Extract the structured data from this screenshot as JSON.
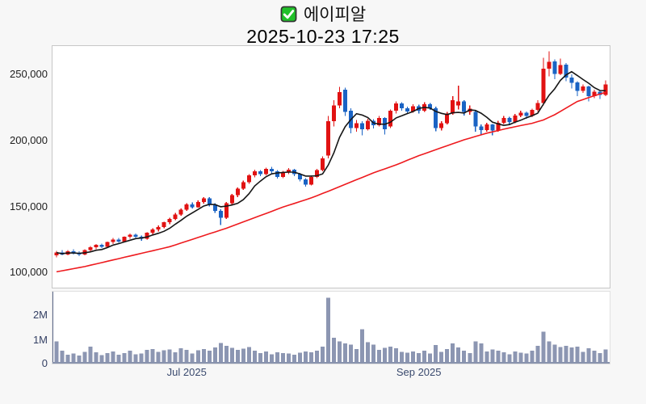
{
  "header": {
    "checkbox_icon": "green-checkbox",
    "checkbox_color": "#21c12a",
    "checkbox_border": "#333333"
  },
  "chart_data": {
    "type": "candlestick",
    "title": "에이피알",
    "timestamp": "2025-10-23 17:25",
    "legend_position": "none",
    "grid": false,
    "colors": {
      "up": "#e11212",
      "down": "#1a63c4",
      "ma_fast": "#161616",
      "ma_slow": "#ee1a1e",
      "volume_bar": "#8c96b2",
      "axis_line": "#5f6b8c",
      "baseline": "#8893ad",
      "plot_border": "#c7c7c7"
    },
    "price_axis": {
      "range": [
        88000,
        271000
      ],
      "ticks": [
        {
          "value": 250000,
          "label": "250,000"
        },
        {
          "value": 200000,
          "label": "200,000"
        },
        {
          "value": 150000,
          "label": "150,000"
        },
        {
          "value": 100000,
          "label": "100,000"
        }
      ]
    },
    "volume_axis": {
      "max": 3050000,
      "ticks": [
        {
          "value": 2000000,
          "label": "2M"
        },
        {
          "value": 1000000,
          "label": "1M"
        },
        {
          "value": 0,
          "label": "0"
        }
      ]
    },
    "x_axis": {
      "ticks": [
        {
          "index": 23,
          "label": "Jul 2025"
        },
        {
          "index": 64,
          "label": "Sep 2025"
        }
      ]
    },
    "ma_fast_period": 6,
    "ma_slow_points": [
      [
        0,
        100000
      ],
      [
        5,
        104000
      ],
      [
        10,
        109000
      ],
      [
        15,
        114000
      ],
      [
        20,
        119000
      ],
      [
        25,
        126000
      ],
      [
        30,
        133000
      ],
      [
        35,
        141000
      ],
      [
        40,
        149000
      ],
      [
        45,
        156000
      ],
      [
        48,
        161000
      ],
      [
        52,
        168000
      ],
      [
        56,
        175000
      ],
      [
        60,
        181000
      ],
      [
        64,
        188000
      ],
      [
        68,
        194000
      ],
      [
        72,
        200000
      ],
      [
        76,
        205000
      ],
      [
        80,
        209000
      ],
      [
        84,
        212500
      ],
      [
        86,
        215000
      ],
      [
        88,
        219000
      ],
      [
        90,
        224000
      ],
      [
        92,
        229000
      ],
      [
        94,
        232000
      ],
      [
        97,
        236000
      ]
    ],
    "ohlcv": [
      [
        112500,
        116000,
        111000,
        114500,
        950000
      ],
      [
        114500,
        116500,
        112500,
        113000,
        550000
      ],
      [
        113000,
        116500,
        112500,
        115500,
        380000
      ],
      [
        115500,
        117000,
        113000,
        114000,
        420000
      ],
      [
        114000,
        115500,
        112000,
        113000,
        350000
      ],
      [
        113000,
        117000,
        112500,
        116500,
        500000
      ],
      [
        116500,
        119500,
        115500,
        118500,
        720000
      ],
      [
        118500,
        121000,
        117000,
        120500,
        480000
      ],
      [
        120500,
        121500,
        118000,
        119000,
        360000
      ],
      [
        119000,
        123000,
        118500,
        122500,
        450000
      ],
      [
        122500,
        125500,
        121000,
        124500,
        520000
      ],
      [
        124500,
        125500,
        122000,
        123000,
        380000
      ],
      [
        123000,
        127000,
        122500,
        126500,
        440000
      ],
      [
        126500,
        129000,
        125000,
        128000,
        550000
      ],
      [
        128000,
        129000,
        125500,
        126500,
        400000
      ],
      [
        126500,
        127500,
        123500,
        125000,
        420000
      ],
      [
        125000,
        130000,
        124500,
        129500,
        580000
      ],
      [
        129500,
        133000,
        128500,
        132000,
        620000
      ],
      [
        132000,
        135000,
        130500,
        134000,
        500000
      ],
      [
        134000,
        138000,
        133000,
        137500,
        560000
      ],
      [
        137500,
        141000,
        136000,
        140000,
        600000
      ],
      [
        140000,
        144500,
        139000,
        143500,
        480000
      ],
      [
        143500,
        148000,
        142500,
        147000,
        650000
      ],
      [
        147000,
        152000,
        146000,
        151000,
        580000
      ],
      [
        151000,
        152500,
        148000,
        149000,
        420000
      ],
      [
        149000,
        154000,
        148500,
        153000,
        560000
      ],
      [
        153000,
        156500,
        151500,
        155500,
        620000
      ],
      [
        155500,
        156500,
        149500,
        151000,
        550000
      ],
      [
        151000,
        152000,
        144500,
        146000,
        680000
      ],
      [
        146000,
        147500,
        135500,
        141000,
        880000
      ],
      [
        141000,
        153000,
        140000,
        152000,
        750000
      ],
      [
        152000,
        159000,
        151000,
        158000,
        660000
      ],
      [
        158000,
        164000,
        156500,
        163000,
        580000
      ],
      [
        163000,
        169000,
        162000,
        168000,
        630000
      ],
      [
        168000,
        174000,
        166500,
        173000,
        700000
      ],
      [
        173000,
        177500,
        171500,
        176000,
        550000
      ],
      [
        176000,
        177000,
        172500,
        174000,
        440000
      ],
      [
        174000,
        179000,
        173000,
        178000,
        520000
      ],
      [
        178000,
        179500,
        174500,
        176000,
        400000
      ],
      [
        176000,
        177000,
        170500,
        172000,
        480000
      ],
      [
        172000,
        176500,
        171000,
        175500,
        450000
      ],
      [
        175500,
        178500,
        174000,
        177500,
        420000
      ],
      [
        177500,
        178000,
        172500,
        174000,
        380000
      ],
      [
        174000,
        175000,
        168500,
        170000,
        460000
      ],
      [
        170000,
        171000,
        164500,
        166000,
        520000
      ],
      [
        166000,
        173000,
        165500,
        172000,
        480000
      ],
      [
        172000,
        178000,
        171000,
        177000,
        550000
      ],
      [
        177000,
        187500,
        176000,
        186000,
        720000
      ],
      [
        188000,
        218000,
        186000,
        214000,
        2800000
      ],
      [
        214000,
        230000,
        210000,
        226000,
        1100000
      ],
      [
        226000,
        240000,
        224000,
        236000,
        950000
      ],
      [
        238000,
        239500,
        218000,
        221000,
        850000
      ],
      [
        222000,
        224000,
        205000,
        209000,
        800000
      ],
      [
        209000,
        215000,
        206000,
        212500,
        620000
      ],
      [
        212500,
        214000,
        203500,
        208000,
        1450000
      ],
      [
        208000,
        216000,
        207000,
        214500,
        900000
      ],
      [
        214500,
        215500,
        208500,
        211000,
        800000
      ],
      [
        211000,
        218000,
        210000,
        216500,
        580000
      ],
      [
        216500,
        217000,
        204000,
        208000,
        660000
      ],
      [
        210000,
        223000,
        209000,
        222000,
        720000
      ],
      [
        222000,
        229000,
        220000,
        227500,
        650000
      ],
      [
        227500,
        228500,
        222000,
        224000,
        500000
      ],
      [
        224000,
        225000,
        219500,
        221500,
        460000
      ],
      [
        221500,
        227000,
        220500,
        225500,
        520000
      ],
      [
        225500,
        226500,
        220000,
        222000,
        440000
      ],
      [
        222000,
        228500,
        221000,
        227000,
        550000
      ],
      [
        227000,
        228000,
        222500,
        224000,
        420000
      ],
      [
        224000,
        225000,
        206500,
        209000,
        780000
      ],
      [
        209000,
        214000,
        207000,
        212500,
        500000
      ],
      [
        212500,
        221000,
        211500,
        220000,
        620000
      ],
      [
        220000,
        233000,
        219000,
        230000,
        850000
      ],
      [
        226000,
        241000,
        223000,
        229000,
        680000
      ],
      [
        229000,
        230000,
        218500,
        221000,
        550000
      ],
      [
        221000,
        226000,
        219000,
        223500,
        450000
      ],
      [
        221000,
        222000,
        206000,
        210000,
        950000
      ],
      [
        210000,
        211500,
        204000,
        207500,
        850000
      ],
      [
        207500,
        213000,
        206000,
        211500,
        520000
      ],
      [
        211500,
        212000,
        203500,
        207000,
        600000
      ],
      [
        207000,
        214500,
        206000,
        213000,
        550000
      ],
      [
        213000,
        218000,
        212000,
        216500,
        480000
      ],
      [
        216500,
        217500,
        211500,
        213500,
        400000
      ],
      [
        213500,
        219500,
        212500,
        218500,
        520000
      ],
      [
        218500,
        222000,
        217000,
        220500,
        460000
      ],
      [
        220500,
        221500,
        216000,
        218000,
        420000
      ],
      [
        218000,
        223500,
        217000,
        222500,
        550000
      ],
      [
        222500,
        230000,
        221500,
        228000,
        750000
      ],
      [
        228000,
        262000,
        226000,
        254000,
        1350000
      ],
      [
        254000,
        267000,
        248000,
        259000,
        950000
      ],
      [
        259500,
        261000,
        246000,
        250000,
        800000
      ],
      [
        250000,
        261500,
        249000,
        256500,
        700000
      ],
      [
        257000,
        258000,
        244500,
        247000,
        750000
      ],
      [
        247000,
        249500,
        239000,
        243000,
        680000
      ],
      [
        243500,
        244500,
        233000,
        237000,
        720000
      ],
      [
        237000,
        242000,
        235500,
        240500,
        500000
      ],
      [
        240500,
        241000,
        229000,
        233000,
        650000
      ],
      [
        233000,
        238000,
        231500,
        236500,
        550000
      ],
      [
        236500,
        237000,
        231000,
        234000,
        450000
      ],
      [
        234000,
        245000,
        233000,
        242000,
        600000
      ]
    ]
  }
}
